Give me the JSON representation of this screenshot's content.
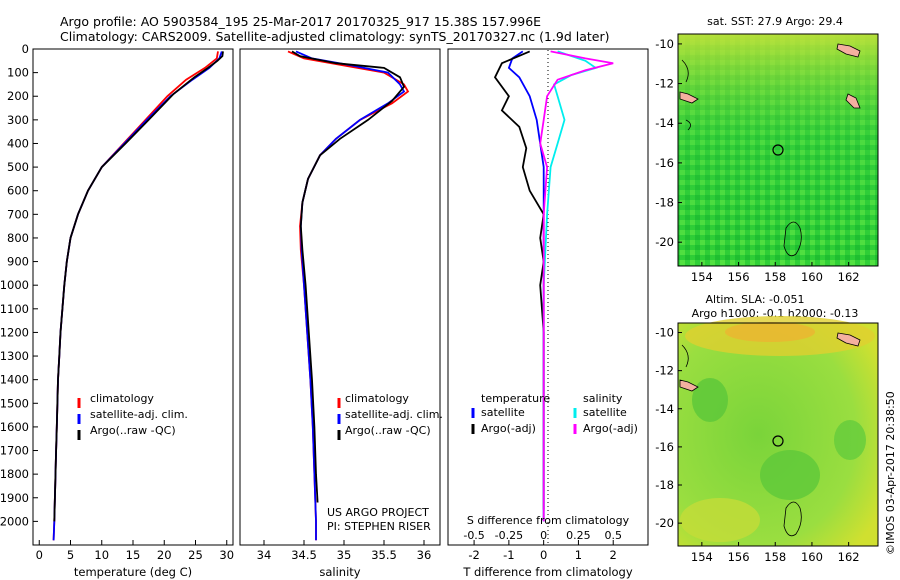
{
  "header": {
    "line1": "Argo profile: AO 5903584_195 25-Mar-2017 20170325_917 15.38S 157.996E",
    "line2": "Climatology: CARS2009. Satellite-adjusted climatology: synTS_20170327.nc (1.9d later)"
  },
  "colors": {
    "red": "#ff0000",
    "blue": "#0000ff",
    "black": "#000000",
    "cyan": "#00eeee",
    "magenta": "#ff00ff"
  },
  "chart_data": [
    {
      "id": "temperature",
      "type": "line",
      "xlabel": "temperature (deg C)",
      "xlim": [
        -1,
        31
      ],
      "ylim": [
        2100,
        0
      ],
      "xticks": [
        0,
        5,
        10,
        15,
        20,
        25,
        30
      ],
      "yticks": [
        0,
        100,
        200,
        300,
        400,
        500,
        600,
        700,
        800,
        900,
        1000,
        1100,
        1200,
        1300,
        1400,
        1500,
        1600,
        1700,
        1800,
        1900,
        2000
      ],
      "legend": [
        "climatology",
        "satellite-adj. clim.",
        "Argo(..raw -QC)"
      ],
      "series": [
        {
          "name": "climatology",
          "color": "red",
          "points": [
            [
              28.6,
              10
            ],
            [
              28.4,
              40
            ],
            [
              26.5,
              80
            ],
            [
              23.5,
              130
            ],
            [
              20.5,
              200
            ],
            [
              17,
              300
            ],
            [
              13.5,
              400
            ],
            [
              10,
              500
            ],
            [
              7.8,
              600
            ],
            [
              6.2,
              700
            ],
            [
              5,
              800
            ],
            [
              4.4,
              900
            ],
            [
              4,
              1000
            ],
            [
              3.7,
              1100
            ],
            [
              3.4,
              1200
            ],
            [
              3.2,
              1300
            ],
            [
              3,
              1400
            ],
            [
              2.9,
              1500
            ],
            [
              2.8,
              1600
            ],
            [
              2.7,
              1700
            ],
            [
              2.6,
              1800
            ],
            [
              2.5,
              1900
            ],
            [
              2.4,
              2000
            ],
            [
              2.3,
              2080
            ]
          ]
        },
        {
          "name": "satellite-adj. clim.",
          "color": "blue",
          "points": [
            [
              29.2,
              10
            ],
            [
              28.8,
              40
            ],
            [
              27.2,
              80
            ],
            [
              24.5,
              130
            ],
            [
              21,
              200
            ],
            [
              17.2,
              300
            ],
            [
              13.6,
              400
            ],
            [
              10,
              500
            ],
            [
              7.8,
              600
            ],
            [
              6.2,
              700
            ],
            [
              5,
              800
            ],
            [
              4.4,
              900
            ],
            [
              4,
              1000
            ],
            [
              3.7,
              1100
            ],
            [
              3.4,
              1200
            ],
            [
              3.2,
              1300
            ],
            [
              3,
              1400
            ],
            [
              2.9,
              1500
            ],
            [
              2.8,
              1600
            ],
            [
              2.7,
              1700
            ],
            [
              2.6,
              1800
            ],
            [
              2.5,
              1900
            ],
            [
              2.4,
              2000
            ],
            [
              2.3,
              2080
            ]
          ]
        },
        {
          "name": "Argo(..raw -QC)",
          "color": "black",
          "points": [
            [
              29.4,
              10
            ],
            [
              29.3,
              30
            ],
            [
              28.5,
              50
            ],
            [
              27,
              80
            ],
            [
              24.8,
              120
            ],
            [
              21.5,
              190
            ],
            [
              17.5,
              300
            ],
            [
              13.8,
              400
            ],
            [
              10,
              500
            ],
            [
              7.8,
              600
            ],
            [
              6.2,
              700
            ],
            [
              5,
              800
            ],
            [
              4.4,
              900
            ],
            [
              4,
              1000
            ],
            [
              3.7,
              1100
            ],
            [
              3.4,
              1200
            ],
            [
              3.2,
              1300
            ],
            [
              3,
              1400
            ],
            [
              2.9,
              1500
            ],
            [
              2.8,
              1600
            ],
            [
              2.7,
              1700
            ],
            [
              2.6,
              1800
            ],
            [
              2.5,
              1900
            ],
            [
              2.4,
              2000
            ]
          ]
        }
      ]
    },
    {
      "id": "salinity",
      "type": "line",
      "xlabel": "salinity",
      "xlim": [
        33.7,
        36.2
      ],
      "ylim": [
        2100,
        0
      ],
      "xticks": [
        34,
        34.5,
        35,
        35.5,
        36
      ],
      "legend": [
        "climatology",
        "satellite-adj. clim.",
        "Argo(..raw -QC)"
      ],
      "annotations": [
        "US ARGO PROJECT",
        "PI: STEPHEN RISER"
      ],
      "series": [
        {
          "name": "climatology",
          "color": "red",
          "points": [
            [
              34.3,
              10
            ],
            [
              34.5,
              40
            ],
            [
              35,
              70
            ],
            [
              35.5,
              100
            ],
            [
              35.75,
              150
            ],
            [
              35.8,
              180
            ],
            [
              35.6,
              230
            ],
            [
              35.2,
              300
            ],
            [
              34.9,
              380
            ],
            [
              34.7,
              450
            ],
            [
              34.55,
              550
            ],
            [
              34.48,
              650
            ],
            [
              34.45,
              750
            ],
            [
              34.46,
              850
            ],
            [
              34.5,
              1000
            ],
            [
              34.54,
              1200
            ],
            [
              34.58,
              1400
            ],
            [
              34.61,
              1600
            ],
            [
              34.63,
              1800
            ],
            [
              34.65,
              2000
            ],
            [
              34.65,
              2080
            ]
          ]
        },
        {
          "name": "satellite-adj. clim.",
          "color": "blue",
          "points": [
            [
              34.4,
              10
            ],
            [
              34.6,
              40
            ],
            [
              35.1,
              70
            ],
            [
              35.55,
              100
            ],
            [
              35.7,
              150
            ],
            [
              35.75,
              180
            ],
            [
              35.55,
              230
            ],
            [
              35.2,
              300
            ],
            [
              34.9,
              380
            ],
            [
              34.7,
              450
            ],
            [
              34.55,
              550
            ],
            [
              34.48,
              650
            ],
            [
              34.46,
              750
            ],
            [
              34.47,
              850
            ],
            [
              34.5,
              1000
            ],
            [
              34.54,
              1200
            ],
            [
              34.58,
              1400
            ],
            [
              34.61,
              1600
            ],
            [
              34.63,
              1800
            ],
            [
              34.65,
              2000
            ],
            [
              34.65,
              2080
            ]
          ]
        },
        {
          "name": "Argo(..raw -QC)",
          "color": "black",
          "points": [
            [
              34.35,
              10
            ],
            [
              34.45,
              30
            ],
            [
              34.9,
              60
            ],
            [
              35.5,
              80
            ],
            [
              35.7,
              120
            ],
            [
              35.75,
              160
            ],
            [
              35.6,
              220
            ],
            [
              35.3,
              300
            ],
            [
              34.95,
              380
            ],
            [
              34.7,
              450
            ],
            [
              34.55,
              550
            ],
            [
              34.48,
              650
            ],
            [
              34.46,
              750
            ],
            [
              34.48,
              850
            ],
            [
              34.52,
              1000
            ],
            [
              34.56,
              1200
            ],
            [
              34.6,
              1400
            ],
            [
              34.63,
              1600
            ],
            [
              34.65,
              1800
            ],
            [
              34.67,
              1920
            ]
          ]
        }
      ]
    },
    {
      "id": "difference",
      "type": "line",
      "xlabel": "T difference from climatology",
      "x2label": "S difference from climatology",
      "xlim": [
        -2.75,
        3
      ],
      "ylim": [
        2100,
        0
      ],
      "xticks": [
        -2,
        -1,
        0,
        1,
        2
      ],
      "x2ticks": [
        "-0.5",
        "-0.25",
        "0",
        "0.25",
        "0.5"
      ],
      "legend_title_left": "temperature",
      "legend_title_right": "salinity",
      "legend_left": [
        "satellite",
        "Argo(-adj)"
      ],
      "legend_right": [
        "satellite",
        "Argo(-adj)"
      ],
      "series": [
        {
          "name": "T satellite",
          "color": "blue",
          "points": [
            [
              -0.6,
              10
            ],
            [
              -0.9,
              40
            ],
            [
              -1,
              80
            ],
            [
              -0.7,
              120
            ],
            [
              -0.4,
              200
            ],
            [
              -0.2,
              300
            ],
            [
              -0.1,
              400
            ],
            [
              0,
              500
            ],
            [
              0,
              1000
            ],
            [
              0,
              2000
            ]
          ]
        },
        {
          "name": "T Argo(-adj)",
          "color": "black",
          "points": [
            [
              -0.4,
              10
            ],
            [
              -1.2,
              60
            ],
            [
              -1.4,
              120
            ],
            [
              -1,
              200
            ],
            [
              -1.2,
              260
            ],
            [
              -0.7,
              330
            ],
            [
              -0.5,
              420
            ],
            [
              -0.6,
              500
            ],
            [
              -0.4,
              600
            ],
            [
              0,
              700
            ],
            [
              -0.1,
              800
            ],
            [
              0,
              900
            ],
            [
              -0.1,
              1000
            ],
            [
              0,
              1200
            ],
            [
              0,
              1500
            ],
            [
              0,
              1800
            ],
            [
              0,
              1950
            ]
          ]
        },
        {
          "name": "S satellite",
          "color": "cyan",
          "points": [
            [
              0.4,
              10
            ],
            [
              1.2,
              50
            ],
            [
              1.5,
              80
            ],
            [
              0.8,
              110
            ],
            [
              0.3,
              150
            ],
            [
              0.4,
              200
            ],
            [
              0.6,
              300
            ],
            [
              0.4,
              400
            ],
            [
              0.2,
              500
            ],
            [
              0.1,
              700
            ],
            [
              0,
              1000
            ],
            [
              0,
              2000
            ]
          ]
        },
        {
          "name": "S Argo(-adj)",
          "color": "magenta",
          "points": [
            [
              0.2,
              10
            ],
            [
              1.2,
              40
            ],
            [
              2,
              60
            ],
            [
              1.2,
              90
            ],
            [
              0.4,
              130
            ],
            [
              0.1,
              200
            ],
            [
              0,
              300
            ],
            [
              -0.1,
              400
            ],
            [
              0.1,
              500
            ],
            [
              0,
              700
            ],
            [
              0,
              1000
            ],
            [
              0,
              2000
            ]
          ]
        }
      ]
    },
    {
      "id": "sst-map",
      "type": "heatmap",
      "title": "sat. SST: 27.9 Argo: 29.4",
      "xlim": [
        152.7,
        163.6
      ],
      "ylim": [
        -21.2,
        -9.5
      ],
      "xticks": [
        154,
        156,
        158,
        160,
        162
      ],
      "yticks": [
        -10,
        -12,
        -14,
        -16,
        -18,
        -20
      ],
      "profile_location": [
        157.996,
        -15.38
      ]
    },
    {
      "id": "sla-map",
      "type": "heatmap",
      "title": "Altim. SLA: -0.051",
      "subtitle": "Argo h1000: -0.1 h2000: -0.13",
      "xlim": [
        152.7,
        163.6
      ],
      "ylim": [
        -21.2,
        -9.5
      ],
      "xticks": [
        154,
        156,
        158,
        160,
        162
      ],
      "yticks": [
        -10,
        -12,
        -14,
        -16,
        -18,
        -20
      ],
      "profile_location": [
        157.996,
        -15.38
      ]
    }
  ],
  "footer": {
    "stamp": "©IMOS 03-Apr-2017 20:38:50"
  }
}
